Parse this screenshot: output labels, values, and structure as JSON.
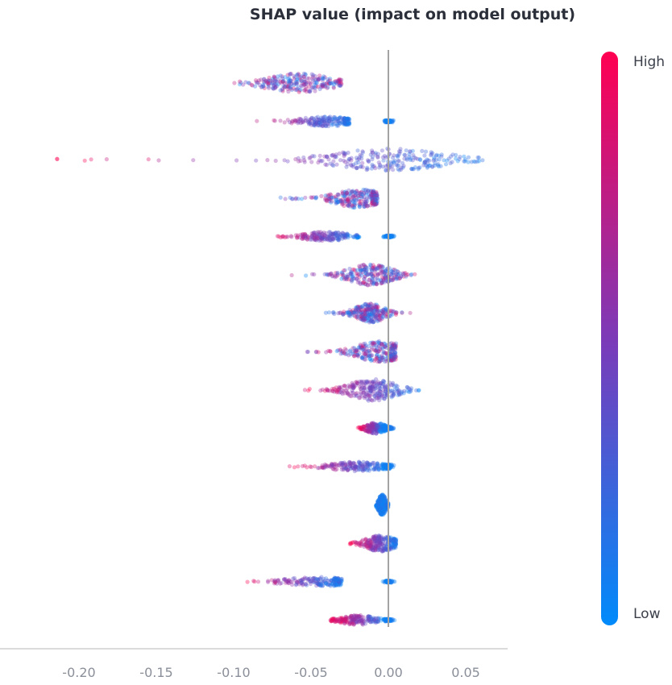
{
  "chart_data": {
    "type": "scatter",
    "subtype": "shap-beeswarm",
    "title": "SHAP value (impact on model output)",
    "xlabel": "",
    "ylabel": "",
    "xlim": [
      -0.225,
      0.075
    ],
    "xticks": [
      -0.2,
      -0.15,
      -0.1,
      -0.05,
      0.0,
      0.05
    ],
    "xtick_labels": [
      "-0.20",
      "-0.15",
      "-0.10",
      "-0.05",
      "0.00",
      "0.05"
    ],
    "zero_line": true,
    "colorbar": {
      "high_label": "High",
      "low_label": "Low",
      "high_color": "#ff0051",
      "low_color": "#008bfb"
    },
    "features": [
      {
        "min": -0.1,
        "max": -0.03,
        "center": -0.058,
        "spread": 0.018,
        "height": 12,
        "high_side": "mixed"
      },
      {
        "min": -0.095,
        "max": -0.025,
        "center": -0.04,
        "spread": 0.015,
        "height": 6,
        "high_side": "left",
        "low_cluster": 0.0
      },
      {
        "min": -0.215,
        "max": 0.063,
        "center": 0.0,
        "spread": 0.03,
        "height": 14,
        "high_side": "left"
      },
      {
        "min": -0.07,
        "max": -0.007,
        "center": -0.02,
        "spread": 0.012,
        "height": 12,
        "high_side": "mixed"
      },
      {
        "min": -0.08,
        "max": -0.018,
        "center": -0.04,
        "spread": 0.012,
        "height": 6,
        "high_side": "left",
        "low_cluster": 0.0
      },
      {
        "min": -0.07,
        "max": 0.02,
        "center": -0.012,
        "spread": 0.012,
        "height": 13,
        "high_side": "mixed"
      },
      {
        "min": -0.045,
        "max": 0.02,
        "center": -0.012,
        "spread": 0.008,
        "height": 12,
        "high_side": "mixed"
      },
      {
        "min": -0.06,
        "max": 0.005,
        "center": -0.005,
        "spread": 0.013,
        "height": 13,
        "high_side": "mixed"
      },
      {
        "min": -0.06,
        "max": 0.02,
        "center": -0.01,
        "spread": 0.012,
        "height": 14,
        "high_side": "left"
      },
      {
        "min": -0.02,
        "max": -0.002,
        "center": -0.008,
        "spread": 0.005,
        "height": 7,
        "high_side": "left",
        "low_cluster": 0.0
      },
      {
        "min": -0.065,
        "max": 0.0,
        "center": -0.02,
        "spread": 0.015,
        "height": 6,
        "high_side": "left",
        "low_cluster": 0.0
      },
      {
        "min": -0.008,
        "max": 0.0,
        "center": -0.004,
        "spread": 0.002,
        "height": 13,
        "high_side": "none"
      },
      {
        "min": -0.025,
        "max": 0.005,
        "center": -0.005,
        "spread": 0.008,
        "height": 10,
        "high_side": "left"
      },
      {
        "min": -0.1,
        "max": -0.03,
        "center": -0.045,
        "spread": 0.018,
        "height": 6,
        "high_side": "left",
        "low_cluster": 0.0
      },
      {
        "min": -0.038,
        "max": 0.0,
        "center": -0.02,
        "spread": 0.01,
        "height": 6,
        "high_side": "left",
        "low_cluster": 0.0
      }
    ]
  }
}
